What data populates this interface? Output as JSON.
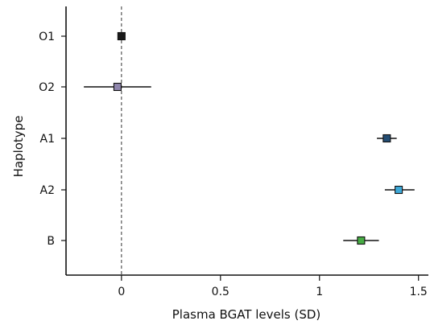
{
  "chart_data": {
    "type": "scatter",
    "title": "",
    "xlabel": "Plasma BGAT levels (SD)",
    "ylabel": "Haplotype",
    "xlim": [
      -0.28,
      1.55
    ],
    "x_ticks": [
      0,
      0.5,
      1,
      1.5
    ],
    "x_tick_labels": [
      "0",
      "0.5",
      "1",
      "1.5"
    ],
    "reference_line_x": 0,
    "categories": [
      "O1",
      "O2",
      "A1",
      "A2",
      "B"
    ],
    "series": [
      {
        "values": [
          {
            "category": "O1",
            "estimate": 0.0,
            "ci_low": 0.0,
            "ci_high": 0.0,
            "color": "#1a1a1a"
          },
          {
            "category": "O2",
            "estimate": -0.02,
            "ci_low": -0.19,
            "ci_high": 0.15,
            "color": "#8f86ad"
          },
          {
            "category": "A1",
            "estimate": 1.34,
            "ci_low": 1.29,
            "ci_high": 1.39,
            "color": "#244d73"
          },
          {
            "category": "A2",
            "estimate": 1.4,
            "ci_low": 1.33,
            "ci_high": 1.48,
            "color": "#3ea9d8"
          },
          {
            "category": "B",
            "estimate": 1.21,
            "ci_low": 1.12,
            "ci_high": 1.3,
            "color": "#47ac44"
          }
        ]
      }
    ],
    "grid": false,
    "legend": "none"
  }
}
